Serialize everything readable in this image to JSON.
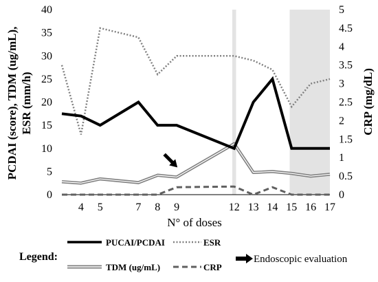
{
  "chart_data": {
    "type": "line",
    "xlabel": "N° of doses",
    "ylabel_left": "PCDAI (score), TDM (ug/mL), ESR (mm/h)",
    "ylabel_left_lines": [
      "PCDAI (score), TDM (ug/mL),",
      "ESR (mm/h)"
    ],
    "ylabel_right": "CRP (mg/dL)",
    "ylim_left": [
      0,
      40
    ],
    "ylim_right": [
      0,
      5
    ],
    "yticks_left": [
      0,
      5,
      10,
      15,
      20,
      25,
      30,
      35,
      40
    ],
    "yticks_right": [
      0,
      0.5,
      1,
      1.5,
      2,
      2.5,
      3,
      3.5,
      4,
      4.5,
      5
    ],
    "xticks": [
      4,
      5,
      7,
      8,
      9,
      12,
      13,
      14,
      15,
      16,
      17
    ],
    "xlim": [
      3,
      17
    ],
    "shaded_x_ranges": [
      [
        11.9,
        12.1
      ],
      [
        14.9,
        17
      ]
    ],
    "series": [
      {
        "name": "PUCAI/PCDAI",
        "axis": "left",
        "style": "thick-solid",
        "color": "#000000",
        "x": [
          3,
          4,
          5,
          7,
          8,
          9,
          12,
          13,
          14,
          15,
          16,
          17
        ],
        "y": [
          17.5,
          17,
          15,
          20,
          15,
          15,
          10,
          20,
          25,
          10,
          10,
          10
        ]
      },
      {
        "name": "ESR",
        "axis": "left",
        "style": "dotted",
        "color": "#808080",
        "x": [
          3,
          4,
          5,
          7,
          8,
          9,
          12,
          13,
          14,
          15,
          16,
          17
        ],
        "y": [
          28,
          13,
          36,
          34,
          26,
          30,
          30,
          29,
          27,
          19,
          24,
          25
        ]
      },
      {
        "name": "TDM (ug/mL)",
        "axis": "left",
        "style": "double",
        "color": "#808080",
        "x": [
          3,
          4,
          5,
          7,
          8,
          9,
          12,
          13,
          14,
          15,
          16,
          17
        ],
        "y": [
          2.8,
          2.5,
          3.4,
          2.6,
          4.2,
          3.8,
          11,
          4.8,
          5,
          4.6,
          4,
          4.4
        ]
      },
      {
        "name": "CRP",
        "axis": "right",
        "style": "dashed",
        "color": "#808080",
        "x": [
          3,
          4,
          5,
          7,
          8,
          9,
          12,
          13,
          14,
          15,
          16,
          17
        ],
        "y": [
          0,
          0,
          0,
          0,
          0,
          0.2,
          0.22,
          0,
          0.2,
          0,
          0,
          0
        ]
      }
    ],
    "annotations": [
      {
        "type": "arrow",
        "label": "Endoscopic evaluation",
        "x": 9,
        "y": 5
      }
    ],
    "legend": {
      "title": "Legend:",
      "placement": "bottom",
      "items": [
        {
          "label": "PUCAI/PCDAI",
          "style": "thick-solid"
        },
        {
          "label": "ESR",
          "style": "dotted"
        },
        {
          "label": "Endoscopic evaluation",
          "style": "arrow"
        },
        {
          "label": "TDM (ug/mL)",
          "style": "double"
        },
        {
          "label": "CRP",
          "style": "dashed"
        }
      ]
    }
  }
}
